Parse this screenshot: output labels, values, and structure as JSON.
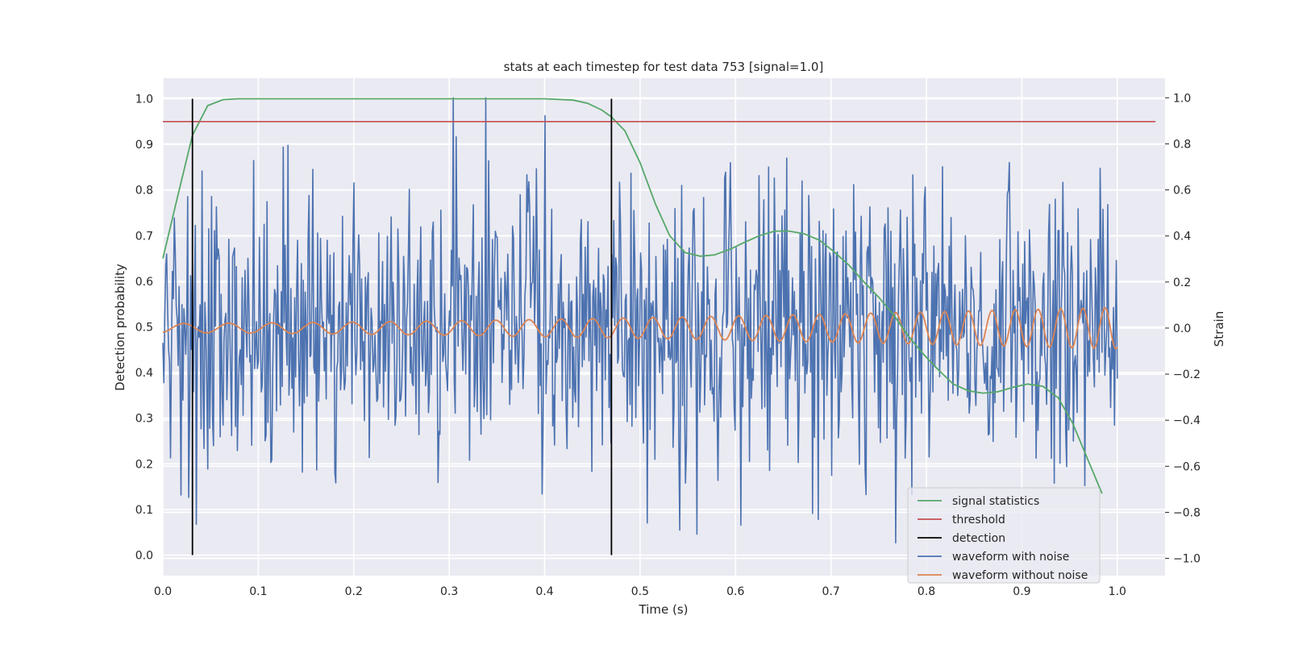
{
  "chart_data": {
    "type": "line",
    "title": "stats at each timestep for test data 753 [signal=1.0]",
    "xlabel": "Time (s)",
    "ylabel": "Detection probability",
    "y2label": "Strain",
    "xlim": [
      0.0,
      1.05
    ],
    "ylim": [
      -0.045,
      1.045
    ],
    "y2lim": [
      -1.075,
      1.085
    ],
    "xticks": [
      "0.0",
      "0.1",
      "0.2",
      "0.3",
      "0.4",
      "0.5",
      "0.6",
      "0.7",
      "0.8",
      "0.9",
      "1.0"
    ],
    "yticks": [
      "0.0",
      "0.1",
      "0.2",
      "0.3",
      "0.4",
      "0.5",
      "0.6",
      "0.7",
      "0.8",
      "0.9",
      "1.0"
    ],
    "y2ticks": [
      "−1.0",
      "−0.8",
      "−0.6",
      "−0.4",
      "−0.2",
      "0.0",
      "0.2",
      "0.4",
      "0.6",
      "0.8",
      "1.0"
    ],
    "grid": true,
    "legend_position": "lower-right",
    "colors": {
      "signal": "#55a868",
      "threshold": "#c44e52",
      "detection": "#000000",
      "noisy": "#4c72b0",
      "clean": "#dd8452",
      "plot_bg": "#eaeaf2",
      "grid": "#ffffff"
    },
    "series": [
      {
        "name": "signal statistics",
        "axis": "left",
        "x": [
          0.0,
          0.016,
          0.031,
          0.047,
          0.063,
          0.078,
          0.094,
          0.11,
          0.2,
          0.3,
          0.4,
          0.43,
          0.445,
          0.46,
          0.47,
          0.484,
          0.5,
          0.516,
          0.531,
          0.547,
          0.563,
          0.578,
          0.594,
          0.609,
          0.625,
          0.641,
          0.656,
          0.672,
          0.688,
          0.703,
          0.719,
          0.734,
          0.75,
          0.766,
          0.781,
          0.797,
          0.813,
          0.828,
          0.844,
          0.859,
          0.875,
          0.891,
          0.906,
          0.922,
          0.938,
          0.953,
          0.969,
          0.984
        ],
        "y": [
          0.65,
          0.79,
          0.92,
          0.985,
          0.998,
          1.0,
          1.0,
          1.0,
          1.0,
          1.0,
          1.0,
          0.997,
          0.99,
          0.975,
          0.96,
          0.93,
          0.86,
          0.77,
          0.7,
          0.663,
          0.655,
          0.658,
          0.67,
          0.685,
          0.7,
          0.71,
          0.71,
          0.704,
          0.69,
          0.665,
          0.635,
          0.6,
          0.565,
          0.525,
          0.48,
          0.44,
          0.405,
          0.375,
          0.36,
          0.355,
          0.358,
          0.368,
          0.375,
          0.37,
          0.345,
          0.29,
          0.21,
          0.135
        ]
      },
      {
        "name": "threshold",
        "axis": "left",
        "x": [
          0.0,
          1.04
        ],
        "y": [
          0.95,
          0.95
        ]
      },
      {
        "name": "detection",
        "axis": "left",
        "x": [
          0.031,
          0.47
        ],
        "y": [
          0.0,
          1.0
        ]
      },
      {
        "name": "waveform with noise",
        "axis": "right",
        "x_start": 0.0,
        "x_end": 1.0,
        "points": 1000,
        "y_range": [
          -1.0,
          1.0
        ]
      },
      {
        "name": "waveform without noise",
        "axis": "right",
        "x_start": 0.0,
        "x_end": 1.0,
        "amplitude_start": 0.02,
        "amplitude_end": 0.09,
        "frequency_start_hz": 20,
        "frequency_end_hz": 44
      }
    ],
    "legend": [
      "signal statistics",
      "threshold",
      "detection",
      "waveform with noise",
      "waveform without noise"
    ]
  }
}
